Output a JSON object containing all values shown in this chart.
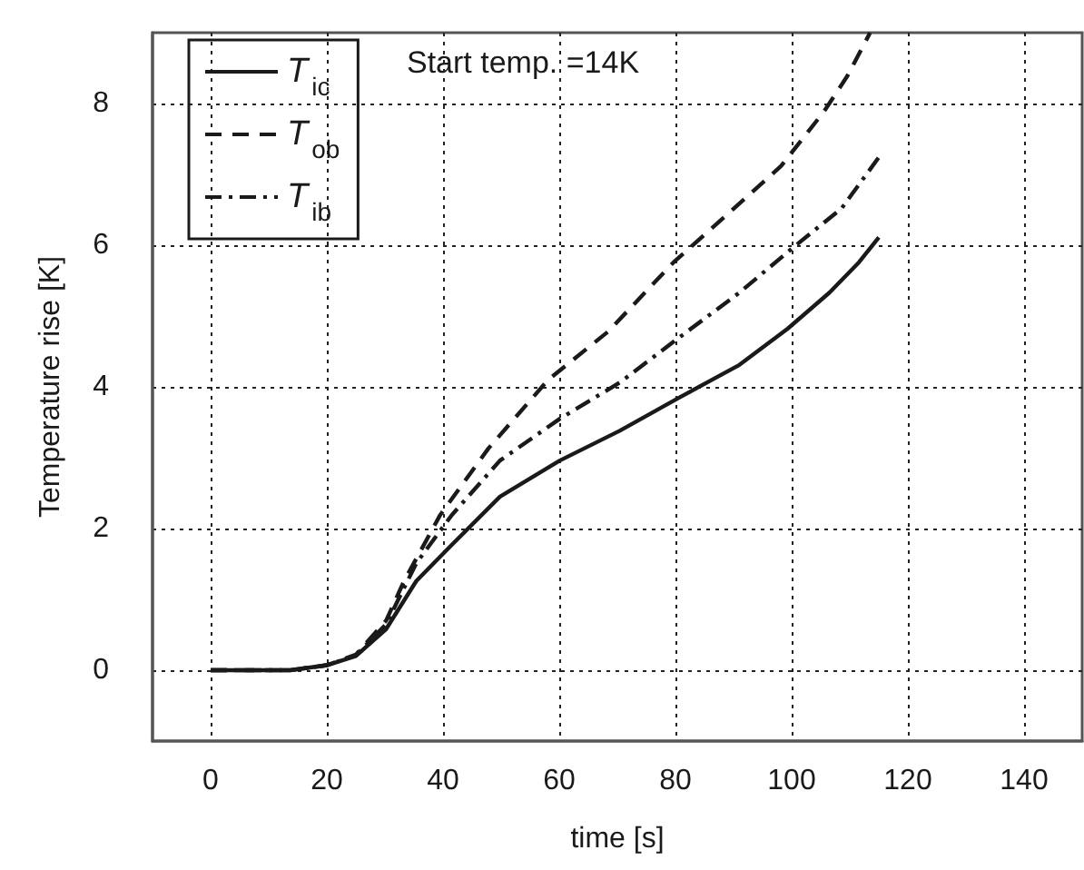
{
  "chart_data": {
    "type": "line",
    "xlabel": "time [s]",
    "ylabel": "Temperature rise [K]",
    "annotations": [
      "Start temp. =14K"
    ],
    "xlim": [
      -10,
      150
    ],
    "xticks": [
      0,
      20,
      40,
      60,
      80,
      100,
      120,
      140
    ],
    "ylim": [
      -1,
      9
    ],
    "yticks": [
      0,
      2,
      4,
      6,
      8
    ],
    "grid": true,
    "legend": "top left",
    "marker": "none",
    "series": [
      {
        "name": "T$_{ic}$",
        "color": "#1a1a1a",
        "line_style": "solid",
        "x": [
          0,
          13.7,
          20,
          25,
          30.2,
          35.4,
          41.5,
          49.8,
          60.1,
          70.4,
          80.7,
          91,
          99.3,
          106.5,
          111.6,
          115
        ],
        "values": [
          0,
          0,
          0.07,
          0.2,
          0.58,
          1.26,
          1.77,
          2.45,
          2.96,
          3.38,
          3.85,
          4.31,
          4.82,
          5.33,
          5.76,
          6.11
        ]
      },
      {
        "name": "T$_{ob}$",
        "color": "#1a1a1a",
        "line_style": "dashed",
        "x": [
          0,
          13.7,
          20,
          25,
          30.2,
          33.3,
          39.5,
          47.8,
          58.1,
          68.4,
          79.7,
          89,
          98.2,
          105.5,
          109.6,
          113.5
        ],
        "values": [
          0,
          0,
          0.07,
          0.22,
          0.7,
          1.26,
          2.19,
          3.13,
          4.1,
          4.78,
          5.76,
          6.44,
          7.12,
          7.88,
          8.39,
          9
        ]
      },
      {
        "name": "T$_{ib}$",
        "color": "#1a1a1a",
        "line_style": "dashdot",
        "x": [
          0,
          13.7,
          20,
          25,
          30.2,
          35.4,
          41.5,
          49.8,
          60.1,
          70.4,
          80.7,
          91,
          100.3,
          108.6,
          115
        ],
        "values": [
          0,
          0,
          0.07,
          0.21,
          0.65,
          1.51,
          2.19,
          2.96,
          3.55,
          4.06,
          4.7,
          5.33,
          5.97,
          6.52,
          7.24
        ]
      }
    ]
  }
}
